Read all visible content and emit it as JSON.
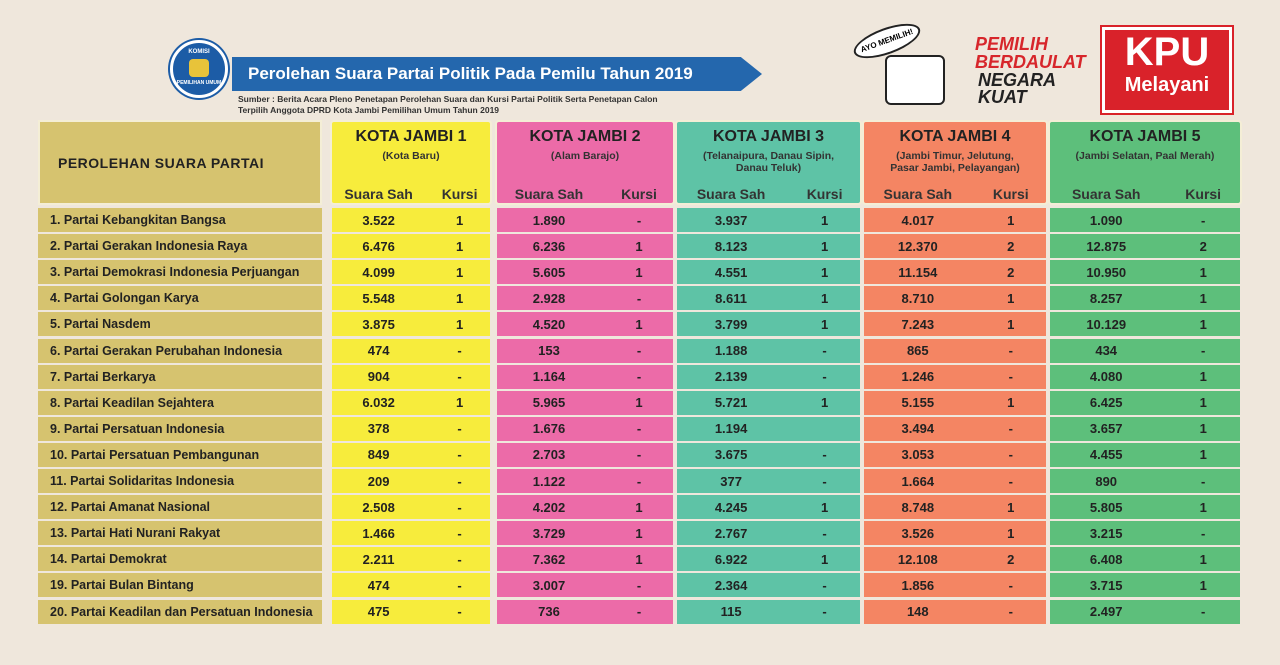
{
  "header": {
    "title": "Perolehan Suara Partai Politik Pada Pemilu Tahun 2019",
    "source": [
      "Sumber : Berita Acara Pleno Penetapan Perolehan Suara dan Kursi Partai Politik Serta Penetapan Calon",
      "Terpilih Anggota DPRD Kota Jambi Pemilihan Umum Tahun 2019"
    ],
    "logo": [
      "KOMISI",
      "PEMILIHAN UMUM"
    ],
    "campaign": {
      "bubble": "AYO MEMILIH!",
      "line1": "PEMILIH BERDAULAT",
      "line2": "NEGARA KUAT"
    },
    "kpu": {
      "name": "KPU",
      "slogan": "Melayani"
    }
  },
  "table": {
    "corner": "PEROLEHAN SUARA PARTAI",
    "columns": [
      {
        "name": "KOTA JAMBI 1",
        "subtitle": "(Kota Baru)",
        "sub_headers": [
          "Suara Sah",
          "Kursi"
        ],
        "color": "#f7ec3c"
      },
      {
        "name": "KOTA JAMBI 2",
        "subtitle": "(Alam Barajo)",
        "sub_headers": [
          "Suara Sah",
          "Kursi"
        ],
        "color": "#ec6ba8"
      },
      {
        "name": "KOTA JAMBI 3",
        "subtitle": "(Telanaipura, Danau Sipin, Danau Teluk)",
        "sub_headers": [
          "Suara Sah",
          "Kursi"
        ],
        "color": "#5ec3a6"
      },
      {
        "name": "KOTA JAMBI 4",
        "subtitle": "(Jambi Timur, Jelutung, Pasar Jambi, Pelayangan)",
        "sub_headers": [
          "Suara Sah",
          "Kursi"
        ],
        "color": "#f48563"
      },
      {
        "name": "KOTA JAMBI 5",
        "subtitle": "(Jambi Selatan, Paal Merah)",
        "sub_headers": [
          "Suara Sah",
          "Kursi"
        ],
        "color": "#5dbf7b"
      }
    ],
    "rows": [
      {
        "party": "1. Partai Kebangkitan Bangsa",
        "cells": [
          [
            "3.522",
            "1"
          ],
          [
            "1.890",
            "-"
          ],
          [
            "3.937",
            "1"
          ],
          [
            "4.017",
            "1"
          ],
          [
            "1.090",
            "-"
          ]
        ]
      },
      {
        "party": "2. Partai Gerakan Indonesia Raya",
        "cells": [
          [
            "6.476",
            "1"
          ],
          [
            "6.236",
            "1"
          ],
          [
            "8.123",
            "1"
          ],
          [
            "12.370",
            "2"
          ],
          [
            "12.875",
            "2"
          ]
        ]
      },
      {
        "party": "3. Partai Demokrasi Indonesia Perjuangan",
        "cells": [
          [
            "4.099",
            "1"
          ],
          [
            "5.605",
            "1"
          ],
          [
            "4.551",
            "1"
          ],
          [
            "11.154",
            "2"
          ],
          [
            "10.950",
            "1"
          ]
        ]
      },
      {
        "party": "4. Partai Golongan Karya",
        "cells": [
          [
            "5.548",
            "1"
          ],
          [
            "2.928",
            "-"
          ],
          [
            "8.611",
            "1"
          ],
          [
            "8.710",
            "1"
          ],
          [
            "8.257",
            "1"
          ]
        ]
      },
      {
        "party": "5. Partai Nasdem",
        "cells": [
          [
            "3.875",
            "1"
          ],
          [
            "4.520",
            "1"
          ],
          [
            "3.799",
            "1"
          ],
          [
            "7.243",
            "1"
          ],
          [
            "10.129",
            "1"
          ]
        ]
      },
      {
        "party": "6. Partai Gerakan Perubahan Indonesia",
        "cells": [
          [
            "474",
            "-"
          ],
          [
            "153",
            "-"
          ],
          [
            "1.188",
            "-"
          ],
          [
            "865",
            "-"
          ],
          [
            "434",
            "-"
          ]
        ]
      },
      {
        "party": "7. Partai Berkarya",
        "cells": [
          [
            "904",
            "-"
          ],
          [
            "1.164",
            "-"
          ],
          [
            "2.139",
            "-"
          ],
          [
            "1.246",
            "-"
          ],
          [
            "4.080",
            "1"
          ]
        ]
      },
      {
        "party": "8. Partai Keadilan Sejahtera",
        "cells": [
          [
            "6.032",
            "1"
          ],
          [
            "5.965",
            "1"
          ],
          [
            "5.721",
            "1"
          ],
          [
            "5.155",
            "1"
          ],
          [
            "6.425",
            "1"
          ]
        ]
      },
      {
        "party": "9. Partai Persatuan Indonesia",
        "cells": [
          [
            "378",
            "-"
          ],
          [
            "1.676",
            "-"
          ],
          [
            "1.194",
            null
          ],
          [
            "3.494",
            "-"
          ],
          [
            "3.657",
            "1"
          ]
        ]
      },
      {
        "party": "10. Partai Persatuan Pembangunan",
        "cells": [
          [
            "849",
            "-"
          ],
          [
            "2.703",
            "-"
          ],
          [
            "3.675",
            "-"
          ],
          [
            "3.053",
            "-"
          ],
          [
            "4.455",
            "1"
          ]
        ]
      },
      {
        "party": "11. Partai Solidaritas Indonesia",
        "cells": [
          [
            "209",
            "-"
          ],
          [
            "1.122",
            "-"
          ],
          [
            "377",
            "-"
          ],
          [
            "1.664",
            "-"
          ],
          [
            "890",
            "-"
          ]
        ]
      },
      {
        "party": "12. Partai Amanat Nasional",
        "cells": [
          [
            "2.508",
            "-"
          ],
          [
            "4.202",
            "1"
          ],
          [
            "4.245",
            "1"
          ],
          [
            "8.748",
            "1"
          ],
          [
            "5.805",
            "1"
          ]
        ]
      },
      {
        "party": "13. Partai Hati Nurani Rakyat",
        "cells": [
          [
            "1.466",
            "-"
          ],
          [
            "3.729",
            "1"
          ],
          [
            "2.767",
            "-"
          ],
          [
            "3.526",
            "1"
          ],
          [
            "3.215",
            "-"
          ]
        ]
      },
      {
        "party": "14. Partai Demokrat",
        "cells": [
          [
            "2.211",
            "-"
          ],
          [
            "7.362",
            "1"
          ],
          [
            "6.922",
            "1"
          ],
          [
            "12.108",
            "2"
          ],
          [
            "6.408",
            "1"
          ]
        ]
      },
      {
        "party": "19. Partai Bulan Bintang",
        "cells": [
          [
            "474",
            "-"
          ],
          [
            "3.007",
            "-"
          ],
          [
            "2.364",
            "-"
          ],
          [
            "1.856",
            "-"
          ],
          [
            "3.715",
            "1"
          ]
        ]
      },
      {
        "party": "20. Partai Keadilan dan Persatuan Indonesia",
        "cells": [
          [
            "475",
            "-"
          ],
          [
            "736",
            "-"
          ],
          [
            "115",
            "-"
          ],
          [
            "148",
            "-"
          ],
          [
            "2.497",
            "-"
          ]
        ]
      }
    ]
  }
}
